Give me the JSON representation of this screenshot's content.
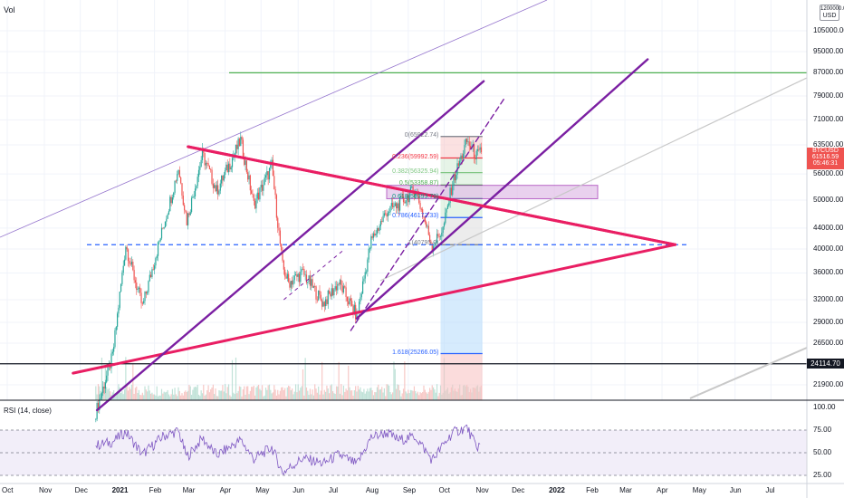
{
  "header": {
    "vol_label": "Vol",
    "currency_line1": "1200000.00",
    "currency_line2": "USD"
  },
  "rsi": {
    "label": "RSI (14, close)",
    "levels": [
      "100.00",
      "75.00",
      "50.00",
      "25.00"
    ]
  },
  "price_axis": {
    "ticks": [
      "105000.00",
      "95000.00",
      "87000.00",
      "79000.00",
      "71000.00",
      "63500.00",
      "56000.00",
      "50000.00",
      "44000.00",
      "40000.00",
      "36000.00",
      "32000.00",
      "29000.00",
      "26500.00",
      "21900.00"
    ],
    "current_price": {
      "symbol": "BTCUSD",
      "price": "61516.59",
      "countdown": "05:46:31"
    },
    "marker_24114": "24114.70"
  },
  "fib_levels": [
    {
      "label": "0(65922.74)",
      "color": "#787b86"
    },
    {
      "label": "0.236(59992.59)",
      "color": "#f23645"
    },
    {
      "label": "0.382(56325.94)",
      "color": "#81c784"
    },
    {
      "label": "0.5(53358.87)",
      "color": "#4caf50"
    },
    {
      "label": "0.618(50393.79)",
      "color": "#089981"
    },
    {
      "label": "0.786(46172.33)",
      "color": "#2962ff"
    },
    {
      "label": "1(40795.0)",
      "color": "#787b86"
    },
    {
      "label": "1.618(25266.05)",
      "color": "#2962ff"
    }
  ],
  "time_axis": [
    "Oct",
    "Nov",
    "Dec",
    "2021",
    "Feb",
    "Mar",
    "Apr",
    "May",
    "Jun",
    "Jul",
    "Aug",
    "Sep",
    "Oct",
    "Nov",
    "Dec",
    "2022",
    "Feb",
    "Mar",
    "Apr",
    "May",
    "Jun",
    "Jul"
  ],
  "colors": {
    "up": "#26a69a",
    "down": "#ef5350",
    "pink": "#e91e63",
    "purple": "#7b1fa2",
    "rsi": "#7e57c2"
  },
  "chart_data": {
    "type": "candlestick",
    "symbol": "BTCUSD",
    "x_range": [
      "2020-10-01",
      "2022-07-31"
    ],
    "y_scale": "log",
    "y_range": [
      19500,
      120000
    ],
    "series": [
      {
        "name": "BTCUSD",
        "points": [
          [
            "2020-12-14",
            19300
          ],
          [
            "2020-12-28",
            25000
          ],
          [
            "2021-01-08",
            40795
          ],
          [
            "2021-01-14",
            36000
          ],
          [
            "2021-01-22",
            31000
          ],
          [
            "2021-02-08",
            44000
          ],
          [
            "2021-02-21",
            57500
          ],
          [
            "2021-02-28",
            45500
          ],
          [
            "2021-03-13",
            61000
          ],
          [
            "2021-03-25",
            52000
          ],
          [
            "2021-04-14",
            64800
          ],
          [
            "2021-04-25",
            49000
          ],
          [
            "2021-05-10",
            58000
          ],
          [
            "2021-05-19",
            37000
          ],
          [
            "2021-05-24",
            34500
          ],
          [
            "2021-06-05",
            36000
          ],
          [
            "2021-06-22",
            31500
          ],
          [
            "2021-07-05",
            34500
          ],
          [
            "2021-07-20",
            29800
          ],
          [
            "2021-08-01",
            41500
          ],
          [
            "2021-08-14",
            47500
          ],
          [
            "2021-08-24",
            49000
          ],
          [
            "2021-09-07",
            52500
          ],
          [
            "2021-09-21",
            40500
          ],
          [
            "2021-09-30",
            43800
          ],
          [
            "2021-10-08",
            54000
          ],
          [
            "2021-10-20",
            64500
          ],
          [
            "2021-10-28",
            60500
          ],
          [
            "2021-11-01",
            61516.59
          ]
        ]
      },
      {
        "name": "RSI (14, close)",
        "points": [
          [
            "2020-12-14",
            58
          ],
          [
            "2020-12-28",
            62
          ],
          [
            "2021-01-08",
            73
          ],
          [
            "2021-01-22",
            48
          ],
          [
            "2021-02-08",
            68
          ],
          [
            "2021-02-21",
            74
          ],
          [
            "2021-02-28",
            45
          ],
          [
            "2021-03-13",
            66
          ],
          [
            "2021-03-25",
            47
          ],
          [
            "2021-04-14",
            64
          ],
          [
            "2021-04-25",
            43
          ],
          [
            "2021-05-10",
            56
          ],
          [
            "2021-05-19",
            28
          ],
          [
            "2021-06-05",
            44
          ],
          [
            "2021-06-22",
            38
          ],
          [
            "2021-07-05",
            48
          ],
          [
            "2021-07-20",
            37
          ],
          [
            "2021-08-01",
            67
          ],
          [
            "2021-08-14",
            72
          ],
          [
            "2021-08-24",
            64
          ],
          [
            "2021-09-07",
            68
          ],
          [
            "2021-09-21",
            42
          ],
          [
            "2021-10-08",
            72
          ],
          [
            "2021-10-20",
            78
          ],
          [
            "2021-10-28",
            56
          ],
          [
            "2021-11-01",
            60
          ]
        ]
      }
    ],
    "horizontal_levels": [
      {
        "value": 87000,
        "color": "#4caf50"
      },
      {
        "value": 40795,
        "color": "#2962ff",
        "style": "dashed"
      },
      {
        "value": 24114.7,
        "color": "#131722"
      }
    ],
    "trendlines": [
      {
        "color": "#e91e63",
        "from": [
          "2021-03-01",
          63000
        ],
        "to": [
          "2022-04-12",
          40800
        ]
      },
      {
        "color": "#e91e63",
        "from": [
          "2020-11-25",
          23100
        ],
        "to": [
          "2022-04-12",
          40800
        ]
      },
      {
        "color": "#7b1fa2",
        "from": [
          "2020-12-15",
          19500
        ],
        "to": [
          "2021-11-03",
          84000
        ]
      },
      {
        "color": "#7b1fa2",
        "from": [
          "2021-07-20",
          29500
        ],
        "to": [
          "2022-03-20",
          92000
        ]
      },
      {
        "color": "#7b1fa2",
        "from": [
          "2021-07-15",
          28000
        ],
        "to": [
          "2021-11-20",
          78000
        ],
        "style": "dashed"
      }
    ],
    "rsi_ylim": [
      20,
      100
    ]
  }
}
